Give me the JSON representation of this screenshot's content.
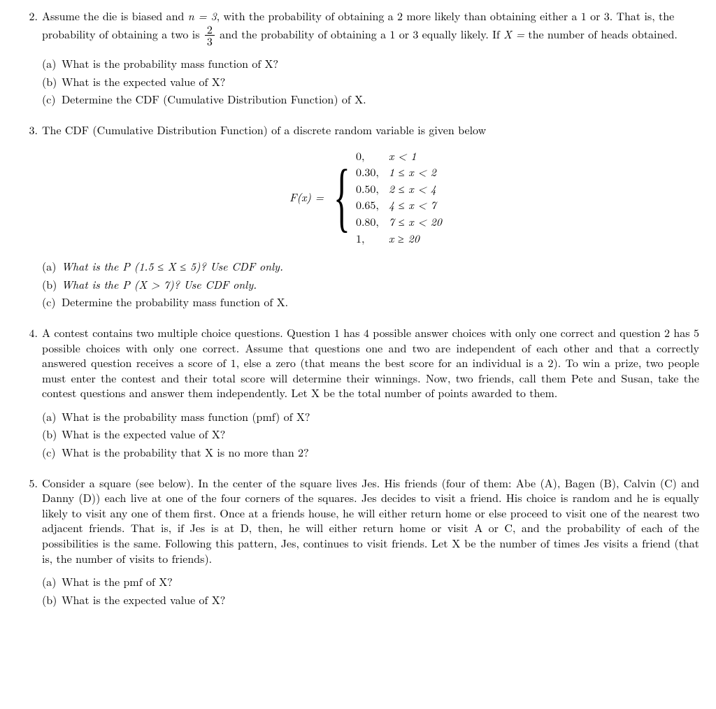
{
  "q2": {
    "num": "2.",
    "intro_part1": "Assume the die is biased and ",
    "n_eq": "n = 3",
    "intro_part2": ", with the probability of obtaining a 2 more likely than obtaining either a 1 or 3. That is, the probability of obtaining a two is ",
    "frac_n": "2",
    "frac_d": "3",
    "intro_part3": " and the probability of obtaining a 1 or 3 equally likely. If ",
    "X_eq": "X =",
    "intro_part4": " the number of heads obtained.",
    "a_label": "(a)",
    "a_text": "What is the probability mass function of X?",
    "b_label": "(b)",
    "b_text": "What is the expected value of X?",
    "c_label": "(c)",
    "c_text": "Determine the CDF (Cumulative Distribution Function) of X."
  },
  "q3": {
    "num": "3.",
    "intro": "The CDF (Cumulative Distribution Function) of a discrete random variable is given below",
    "lhs": "F(x) =",
    "rows": [
      {
        "v": "0,",
        "c": "x < 1"
      },
      {
        "v": "0.30,",
        "c": "1 ≤ x < 2"
      },
      {
        "v": "0.50,",
        "c": "2 ≤ x < 4"
      },
      {
        "v": "0.65,",
        "c": "4 ≤ x < 7"
      },
      {
        "v": "0.80,",
        "c": "7 ≤ x < 20"
      },
      {
        "v": "1,",
        "c": "x ≥ 20"
      }
    ],
    "a_label": "(a)",
    "a_text": "What is the P (1.5 ≤ X ≤ 5)? Use CDF only.",
    "b_label": "(b)",
    "b_text": "What is the P (X > 7)?   Use CDF only.",
    "c_label": "(c)",
    "c_text": "Determine the probability mass function of X."
  },
  "q4": {
    "num": "4.",
    "intro": "A contest contains two multiple choice questions. Question 1 has 4 possible answer choices with only one correct and question 2 has 5 possible choices with only one correct. Assume that questions one and two are independent of each other and that a correctly answered question receives a score of 1, else a zero (that means the best score for an individual is a 2). To win a prize, two people must enter the contest and their total score will determine their winnings. Now, two friends, call them Pete and Susan, take the contest questions and answer them independently. Let X be the total number of points awarded to them.",
    "a_label": "(a)",
    "a_text": "What is the probability mass function (pmf) of X?",
    "b_label": "(b)",
    "b_text": "What is the expected value of X?",
    "c_label": "(c)",
    "c_text": "What is the probability that X is no more than 2?"
  },
  "q5": {
    "num": "5.",
    "intro": "Consider a square (see below). In the center of the square lives Jes. His friends (four of them: Abe (A), Bagen (B), Calvin (C) and Danny (D)) each live at one of the four corners of the squares. Jes decides to visit a friend. His choice is random and he is equally likely to visit any one of them first. Once at a friends house, he will either return home or else proceed to visit one of the nearest two adjacent friends. That is, if Jes is at D, then, he will either return home or visit A or C, and the probability of each of the possibilities is the same. Following this pattern, Jes, continues to visit friends. Let X be the number of times Jes visits a friend (that is, the number of visits to friends).",
    "a_label": "(a)",
    "a_text": "What is the pmf of X?",
    "b_label": "(b)",
    "b_text": "What is the expected value of X?"
  }
}
